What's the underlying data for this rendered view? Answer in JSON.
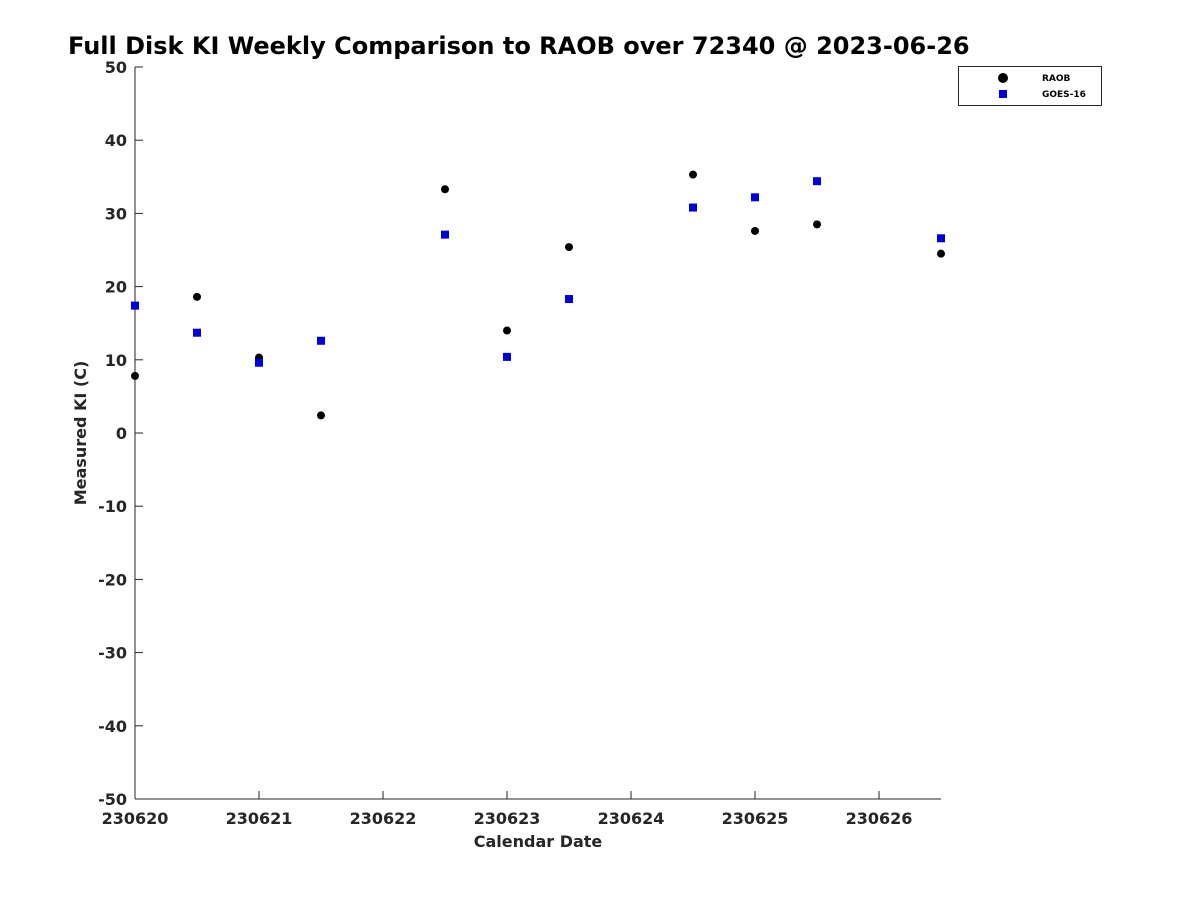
{
  "chart_data": {
    "type": "scatter",
    "title": "Full Disk KI Weekly Comparison to RAOB over 72340 @ 2023-06-26",
    "xlabel": "Calendar Date",
    "ylabel": "Measured KI (C)",
    "xlim": [
      "2023-06-20",
      "2023-06-26T12:00"
    ],
    "ylim": [
      -50,
      50
    ],
    "xticks": [
      "230620",
      "230621",
      "230622",
      "230623",
      "230624",
      "230625",
      "230626"
    ],
    "yticks": [
      "50",
      "40",
      "30",
      "20",
      "10",
      "0",
      "-10",
      "-20",
      "-30",
      "-40",
      "-50"
    ],
    "grid": false,
    "legend_position": "top-right",
    "series": [
      {
        "name": "RAOB",
        "marker": "circle",
        "color": "#000000",
        "x": [
          "2023-06-20T00:00",
          "2023-06-20T12:00",
          "2023-06-21T00:00",
          "2023-06-21T12:00",
          "2023-06-22T12:00",
          "2023-06-23T00:00",
          "2023-06-23T12:00",
          "2023-06-24T12:00",
          "2023-06-25T00:00",
          "2023-06-25T12:00",
          "2023-06-26T12:00"
        ],
        "values": [
          7.8,
          18.6,
          10.3,
          2.4,
          33.3,
          14.0,
          25.4,
          35.3,
          27.6,
          28.5,
          24.5
        ]
      },
      {
        "name": "GOES-16",
        "marker": "square",
        "color": "#0000dd",
        "x": [
          "2023-06-20T00:00",
          "2023-06-20T12:00",
          "2023-06-21T00:00",
          "2023-06-21T12:00",
          "2023-06-22T12:00",
          "2023-06-23T00:00",
          "2023-06-23T12:00",
          "2023-06-24T12:00",
          "2023-06-25T00:00",
          "2023-06-25T12:00",
          "2023-06-26T12:00"
        ],
        "values": [
          17.4,
          13.7,
          9.6,
          12.6,
          27.1,
          10.4,
          18.3,
          30.8,
          32.2,
          34.4,
          26.6
        ]
      }
    ]
  }
}
